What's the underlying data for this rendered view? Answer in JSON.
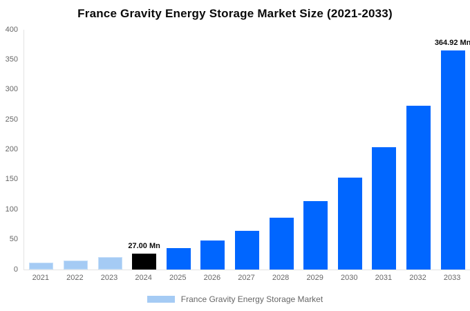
{
  "title": "France Gravity Energy Storage Market Size (2021-2033)",
  "chart_data": {
    "type": "bar",
    "title": "France Gravity Energy Storage Market Size (2021-2033)",
    "categories": [
      "2021",
      "2022",
      "2023",
      "2024",
      "2025",
      "2026",
      "2027",
      "2028",
      "2029",
      "2030",
      "2031",
      "2032",
      "2033"
    ],
    "values": [
      11.3,
      15.1,
      20.2,
      27.0,
      36,
      48,
      64,
      86,
      114,
      153,
      204,
      273,
      364.92
    ],
    "unit": "Mn",
    "bar_colors": [
      "#a5cbf4",
      "#a5cbf4",
      "#a5cbf4",
      "#000000",
      "#0066ff",
      "#0066ff",
      "#0066ff",
      "#0066ff",
      "#0066ff",
      "#0066ff",
      "#0066ff",
      "#0066ff",
      "#0066ff"
    ],
    "bar_border_colors": [
      "#c4def9",
      "#c4def9",
      "#c4def9",
      "#000000",
      "#0066ff",
      "#0066ff",
      "#0066ff",
      "#0066ff",
      "#0066ff",
      "#0066ff",
      "#0066ff",
      "#0066ff",
      "#0066ff"
    ],
    "xlabel": "",
    "ylabel": "",
    "ylim": [
      0,
      400
    ],
    "yticks": [
      0,
      50,
      100,
      150,
      200,
      250,
      300,
      350,
      400
    ],
    "grid": false,
    "annotations": [
      {
        "category": "2024",
        "text": "27.00 Mn"
      },
      {
        "category": "2033",
        "text": "364.92 Mn"
      }
    ],
    "legend": {
      "position": "bottom",
      "entries": [
        {
          "label": "France Gravity Energy Storage Market",
          "color": "#a5cbf4"
        }
      ]
    },
    "axis_text_color": "#666666",
    "axis_line_color": "#e3e3e3"
  }
}
